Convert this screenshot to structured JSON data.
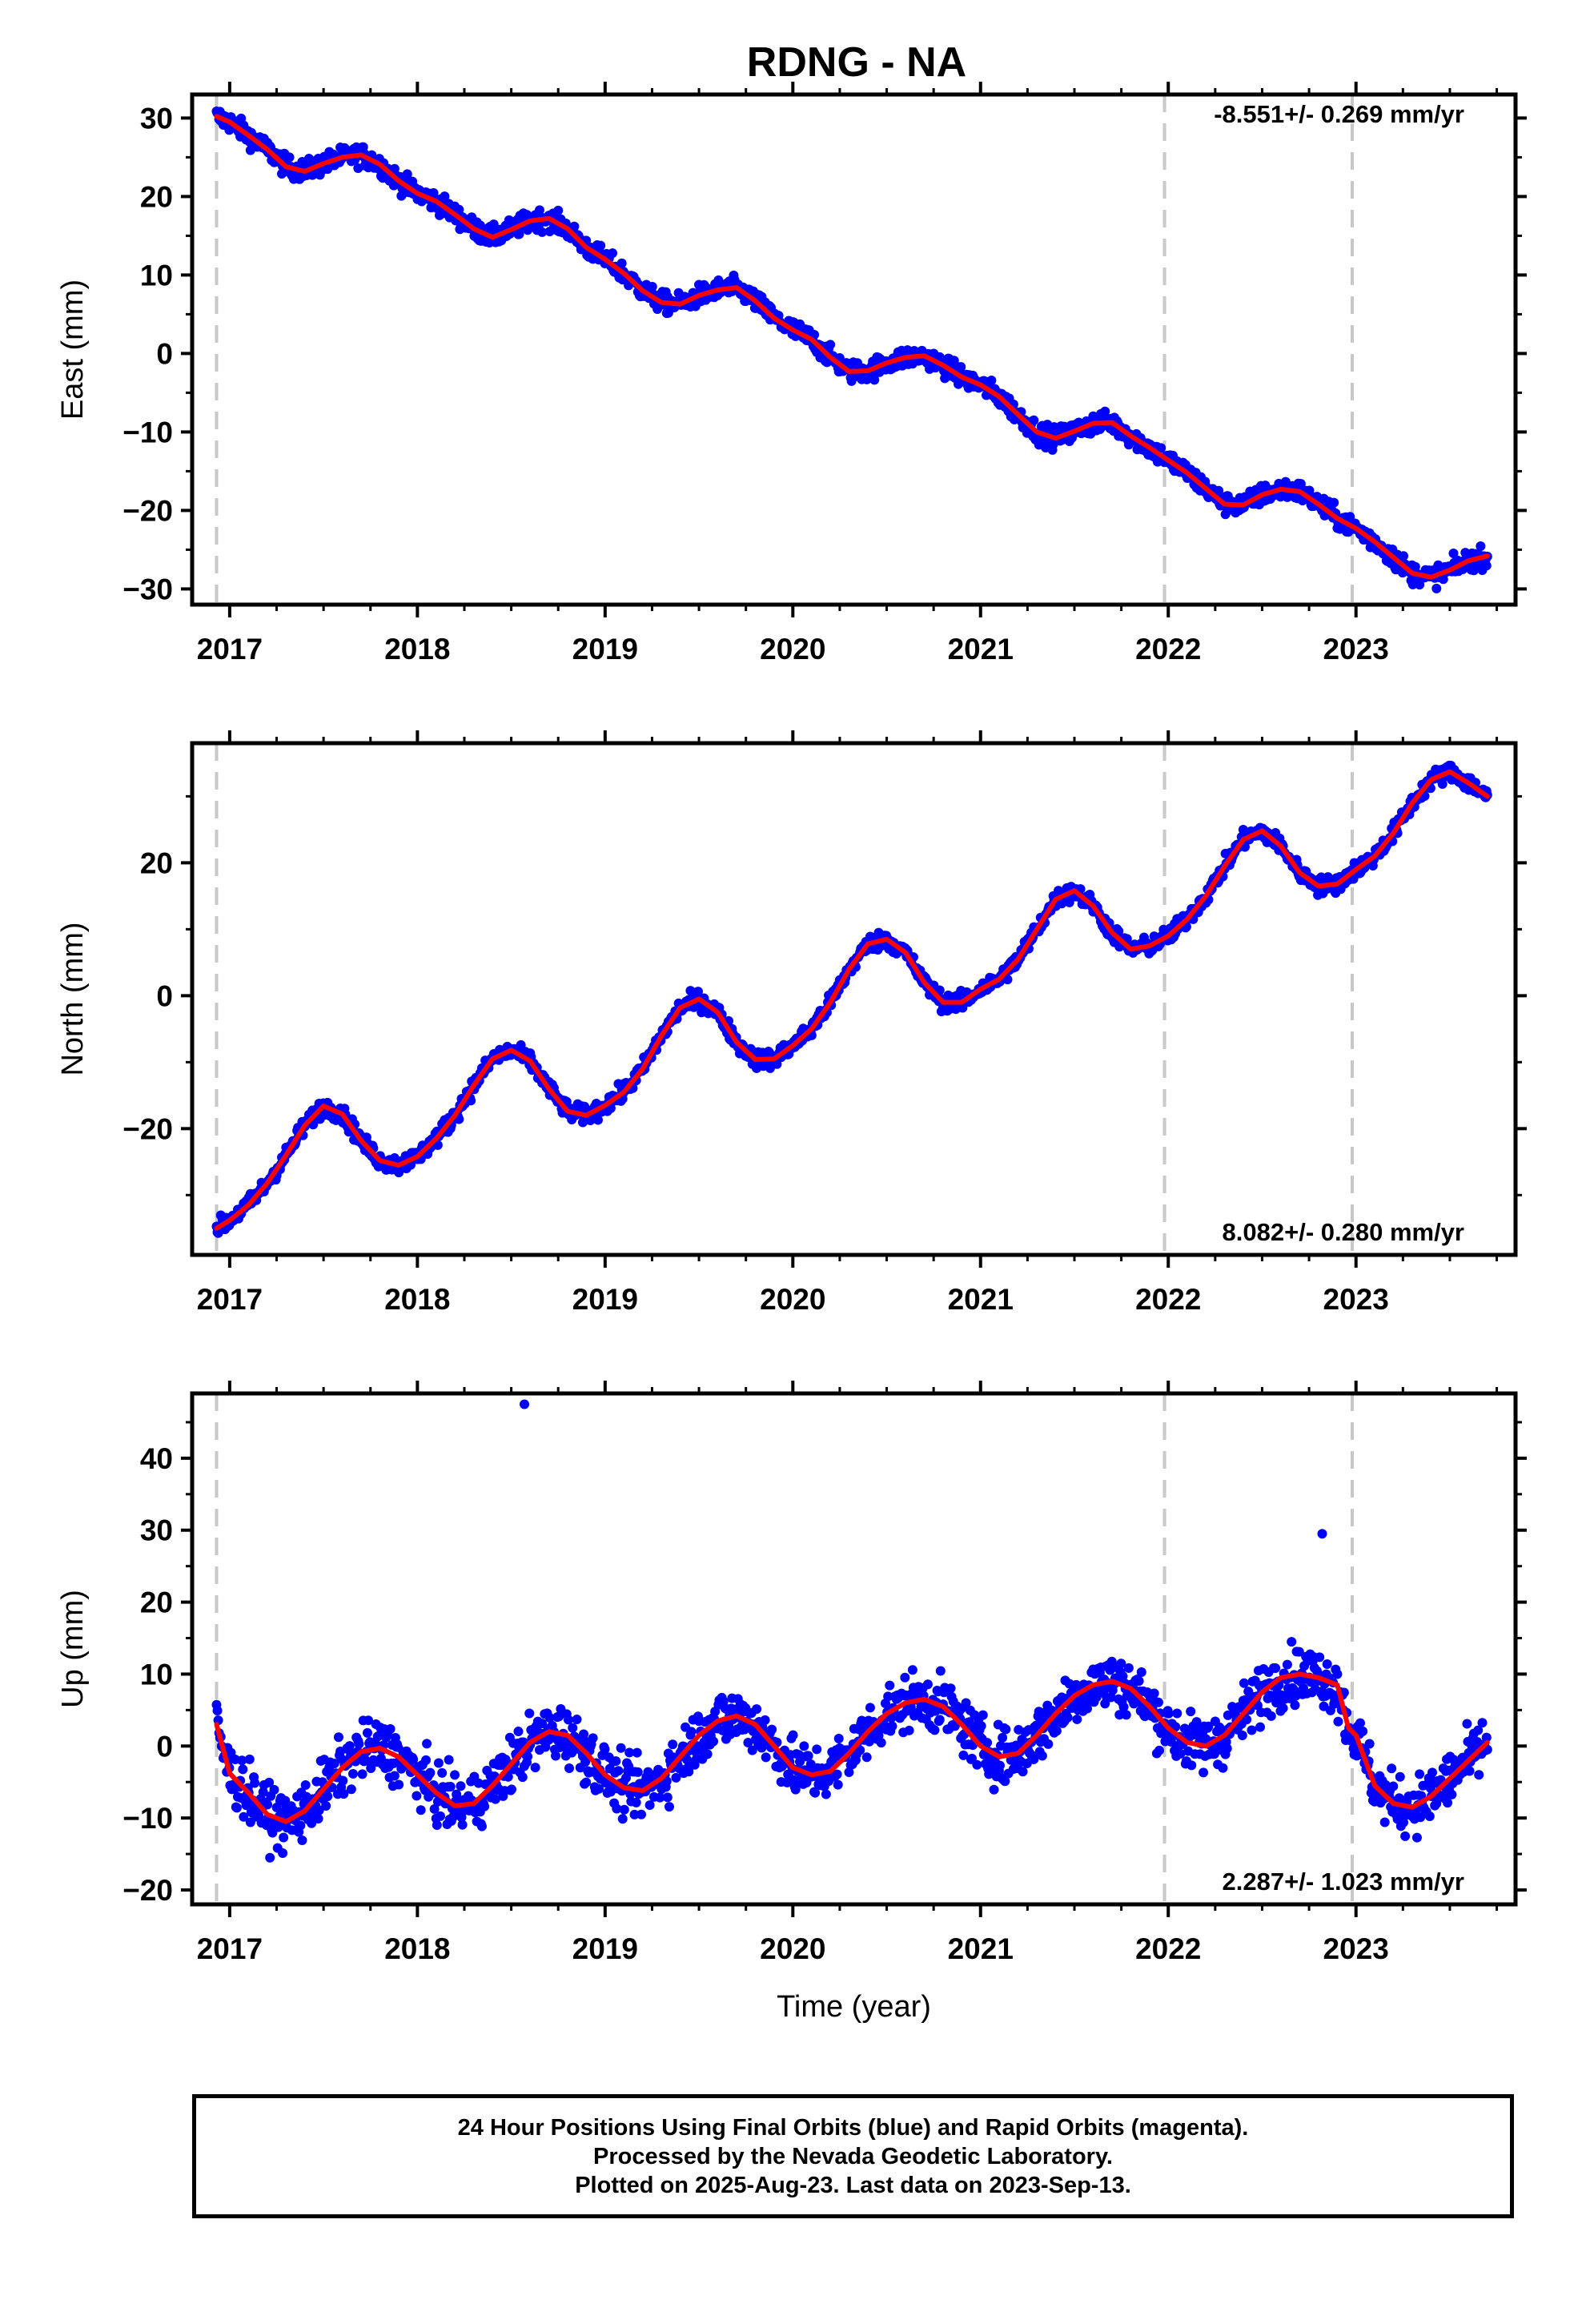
{
  "title": "RDNG - NA",
  "colors": {
    "data_points": "#0000ff",
    "model_line": "#ff0000",
    "gridline_dashed": "#c8c8c8",
    "axes": "#000000"
  },
  "chart_data": [
    {
      "type": "scatter",
      "title": "RDNG - NA",
      "xlabel": "",
      "ylabel": "East (mm)",
      "xlim": [
        2016.8,
        2023.85
      ],
      "ylim": [
        -32,
        33
      ],
      "yticks": [
        30,
        20,
        10,
        0,
        -10,
        -20,
        -30
      ],
      "xticks": [
        2017,
        2018,
        2019,
        2020,
        2021,
        2022,
        2023
      ],
      "xtick_labels": [
        "2017",
        "2018",
        "2019",
        "2020",
        "2021",
        "2022",
        "2023"
      ],
      "vertical_dashed_lines": [
        2016.93,
        2021.98,
        2022.98
      ],
      "rate_label": "-8.551+/- 0.269 mm/yr",
      "rate_label_position": "top-right",
      "series": [
        {
          "name": "",
          "kind": "points",
          "x": [
            2016.93,
            2017.0,
            2017.1,
            2017.2,
            2017.3,
            2017.4,
            2017.5,
            2017.6,
            2017.7,
            2017.8,
            2017.9,
            2018.0,
            2018.1,
            2018.2,
            2018.3,
            2018.4,
            2018.5,
            2018.6,
            2018.7,
            2018.8,
            2018.9,
            2019.0,
            2019.1,
            2019.2,
            2019.3,
            2019.4,
            2019.5,
            2019.6,
            2019.7,
            2019.8,
            2019.9,
            2020.0,
            2020.1,
            2020.2,
            2020.3,
            2020.4,
            2020.5,
            2020.6,
            2020.7,
            2020.8,
            2020.9,
            2021.0,
            2021.1,
            2021.2,
            2021.3,
            2021.4,
            2021.5,
            2021.6,
            2021.7,
            2021.8,
            2021.9,
            2022.0,
            2022.1,
            2022.2,
            2022.3,
            2022.4,
            2022.5,
            2022.6,
            2022.7,
            2022.8,
            2022.9,
            2023.0,
            2023.1,
            2023.2,
            2023.3,
            2023.4,
            2023.5,
            2023.6,
            2023.7
          ],
          "y": [
            30.2,
            29.5,
            27.8,
            26.0,
            23.8,
            23.2,
            24.2,
            25.0,
            25.3,
            24.1,
            22.0,
            20.4,
            19.4,
            17.7,
            15.9,
            14.8,
            15.8,
            16.9,
            17.2,
            15.9,
            13.5,
            12.0,
            10.2,
            8.0,
            6.5,
            6.3,
            7.4,
            8.1,
            8.4,
            6.7,
            4.5,
            3.0,
            1.8,
            -0.5,
            -2.3,
            -2.2,
            -1.2,
            -0.5,
            -0.3,
            -1.5,
            -3.0,
            -4.0,
            -5.5,
            -7.8,
            -10.0,
            -10.8,
            -9.9,
            -8.9,
            -8.8,
            -10.5,
            -12.0,
            -13.6,
            -15.2,
            -17.2,
            -19.2,
            -19.3,
            -18.0,
            -17.3,
            -17.6,
            -19.2,
            -21.0,
            -22.3,
            -24.0,
            -26.0,
            -28.0,
            -28.5,
            -27.6,
            -26.4,
            -25.8
          ]
        },
        {
          "name": "",
          "kind": "line",
          "x": [
            2016.93,
            2017.0,
            2017.1,
            2017.2,
            2017.3,
            2017.4,
            2017.5,
            2017.6,
            2017.7,
            2017.8,
            2017.9,
            2018.0,
            2018.1,
            2018.2,
            2018.3,
            2018.4,
            2018.5,
            2018.6,
            2018.7,
            2018.8,
            2018.9,
            2019.0,
            2019.1,
            2019.2,
            2019.3,
            2019.4,
            2019.5,
            2019.6,
            2019.7,
            2019.8,
            2019.9,
            2020.0,
            2020.1,
            2020.2,
            2020.3,
            2020.4,
            2020.5,
            2020.6,
            2020.7,
            2020.8,
            2020.9,
            2021.0,
            2021.1,
            2021.2,
            2021.3,
            2021.4,
            2021.5,
            2021.6,
            2021.7,
            2021.8,
            2021.9,
            2022.0,
            2022.1,
            2022.2,
            2022.3,
            2022.4,
            2022.5,
            2022.6,
            2022.7,
            2022.8,
            2022.9,
            2023.0,
            2023.1,
            2023.2,
            2023.3,
            2023.4,
            2023.5,
            2023.6,
            2023.7
          ],
          "y": [
            30.2,
            29.5,
            27.8,
            26.0,
            23.8,
            23.2,
            24.2,
            25.0,
            25.3,
            24.1,
            22.0,
            20.4,
            19.4,
            17.7,
            15.9,
            14.8,
            15.8,
            16.9,
            17.2,
            15.9,
            13.5,
            12.0,
            10.2,
            8.0,
            6.5,
            6.3,
            7.4,
            8.1,
            8.4,
            6.7,
            4.5,
            3.0,
            1.8,
            -0.5,
            -2.3,
            -2.2,
            -1.2,
            -0.5,
            -0.3,
            -1.5,
            -3.0,
            -4.0,
            -5.5,
            -7.8,
            -10.0,
            -10.8,
            -9.9,
            -8.9,
            -8.8,
            -10.5,
            -12.0,
            -13.6,
            -15.2,
            -17.2,
            -19.2,
            -19.3,
            -18.0,
            -17.3,
            -17.6,
            -19.2,
            -21.0,
            -22.3,
            -24.0,
            -26.0,
            -28.0,
            -28.5,
            -27.6,
            -26.4,
            -25.8
          ]
        }
      ]
    },
    {
      "type": "scatter",
      "title": "",
      "xlabel": "",
      "ylabel": "North (mm)",
      "xlim": [
        2016.8,
        2023.85
      ],
      "ylim": [
        -39,
        38
      ],
      "yticks": [
        20,
        0,
        -20
      ],
      "xticks": [
        2017,
        2018,
        2019,
        2020,
        2021,
        2022,
        2023
      ],
      "xtick_labels": [
        "2017",
        "2018",
        "2019",
        "2020",
        "2021",
        "2022",
        "2023"
      ],
      "vertical_dashed_lines": [
        2016.93,
        2021.98,
        2022.98
      ],
      "rate_label": "8.082+/- 0.280 mm/yr",
      "rate_label_position": "bottom-right",
      "series": [
        {
          "name": "",
          "kind": "points",
          "x": [
            2016.93,
            2017.0,
            2017.1,
            2017.2,
            2017.3,
            2017.4,
            2017.5,
            2017.6,
            2017.7,
            2017.8,
            2017.9,
            2018.0,
            2018.1,
            2018.2,
            2018.3,
            2018.4,
            2018.5,
            2018.6,
            2018.7,
            2018.8,
            2018.9,
            2019.0,
            2019.1,
            2019.2,
            2019.3,
            2019.4,
            2019.5,
            2019.6,
            2019.7,
            2019.8,
            2019.9,
            2020.0,
            2020.1,
            2020.2,
            2020.3,
            2020.4,
            2020.5,
            2020.6,
            2020.7,
            2020.8,
            2020.9,
            2021.0,
            2021.1,
            2021.2,
            2021.3,
            2021.4,
            2021.5,
            2021.6,
            2021.7,
            2021.8,
            2021.9,
            2022.0,
            2022.1,
            2022.2,
            2022.3,
            2022.4,
            2022.5,
            2022.6,
            2022.7,
            2022.8,
            2022.9,
            2023.0,
            2023.1,
            2023.2,
            2023.3,
            2023.4,
            2023.5,
            2023.6,
            2023.7
          ],
          "y": [
            -35.0,
            -33.8,
            -31.5,
            -28.2,
            -24.0,
            -19.5,
            -16.6,
            -17.8,
            -21.8,
            -24.8,
            -25.5,
            -24.2,
            -21.5,
            -18.0,
            -13.5,
            -9.5,
            -8.2,
            -9.8,
            -14.0,
            -17.4,
            -18.0,
            -16.5,
            -14.5,
            -11.0,
            -6.0,
            -1.8,
            -0.5,
            -2.5,
            -7.0,
            -9.6,
            -9.5,
            -7.5,
            -5.0,
            -1.0,
            4.0,
            7.8,
            8.5,
            6.5,
            2.0,
            -1.0,
            -1.0,
            1.0,
            2.5,
            5.5,
            10.0,
            14.5,
            15.8,
            13.5,
            9.5,
            7.0,
            7.5,
            9.0,
            11.5,
            15.0,
            19.5,
            23.5,
            24.8,
            22.5,
            18.5,
            16.5,
            16.8,
            19.0,
            21.0,
            24.5,
            29.0,
            32.5,
            33.7,
            32.0,
            30.0
          ]
        },
        {
          "name": "",
          "kind": "line",
          "x": [
            2016.93,
            2017.0,
            2017.1,
            2017.2,
            2017.3,
            2017.4,
            2017.5,
            2017.6,
            2017.7,
            2017.8,
            2017.9,
            2018.0,
            2018.1,
            2018.2,
            2018.3,
            2018.4,
            2018.5,
            2018.6,
            2018.7,
            2018.8,
            2018.9,
            2019.0,
            2019.1,
            2019.2,
            2019.3,
            2019.4,
            2019.5,
            2019.6,
            2019.7,
            2019.8,
            2019.9,
            2020.0,
            2020.1,
            2020.2,
            2020.3,
            2020.4,
            2020.5,
            2020.6,
            2020.7,
            2020.8,
            2020.9,
            2021.0,
            2021.1,
            2021.2,
            2021.3,
            2021.4,
            2021.5,
            2021.6,
            2021.7,
            2021.8,
            2021.9,
            2022.0,
            2022.1,
            2022.2,
            2022.3,
            2022.4,
            2022.5,
            2022.6,
            2022.7,
            2022.8,
            2022.9,
            2023.0,
            2023.1,
            2023.2,
            2023.3,
            2023.4,
            2023.5,
            2023.6,
            2023.7
          ],
          "y": [
            -35.0,
            -33.8,
            -31.5,
            -28.2,
            -24.0,
            -19.5,
            -16.6,
            -17.8,
            -21.8,
            -24.8,
            -25.5,
            -24.2,
            -21.5,
            -18.0,
            -13.5,
            -9.5,
            -8.2,
            -9.8,
            -14.0,
            -17.4,
            -18.0,
            -16.5,
            -14.5,
            -11.0,
            -6.0,
            -1.8,
            -0.5,
            -2.5,
            -7.0,
            -9.6,
            -9.5,
            -7.5,
            -5.0,
            -1.0,
            4.0,
            7.8,
            8.5,
            6.5,
            2.0,
            -1.0,
            -1.0,
            1.0,
            2.5,
            5.5,
            10.0,
            14.5,
            15.8,
            13.5,
            9.5,
            7.0,
            7.5,
            9.0,
            11.5,
            15.0,
            19.5,
            23.5,
            24.8,
            22.5,
            18.5,
            16.5,
            16.8,
            19.0,
            21.0,
            24.5,
            29.0,
            32.5,
            33.7,
            32.0,
            30.0
          ]
        }
      ]
    },
    {
      "type": "scatter",
      "title": "",
      "xlabel": "Time (year)",
      "ylabel": "Up (mm)",
      "xlim": [
        2016.8,
        2023.85
      ],
      "ylim": [
        -22,
        49
      ],
      "yticks": [
        40,
        30,
        20,
        10,
        0,
        -10,
        -20
      ],
      "xticks": [
        2017,
        2018,
        2019,
        2020,
        2021,
        2022,
        2023
      ],
      "xtick_labels": [
        "2017",
        "2018",
        "2019",
        "2020",
        "2021",
        "2022",
        "2023"
      ],
      "vertical_dashed_lines": [
        2016.93,
        2021.98,
        2022.98
      ],
      "rate_label": "2.287+/- 1.023 mm/yr",
      "rate_label_position": "bottom-right",
      "outliers": [
        {
          "x": 2018.57,
          "y": 47.5
        },
        {
          "x": 2022.82,
          "y": 29.5
        }
      ],
      "series": [
        {
          "name": "",
          "kind": "points",
          "x": [
            2016.93,
            2017.0,
            2017.1,
            2017.2,
            2017.3,
            2017.4,
            2017.5,
            2017.6,
            2017.7,
            2017.8,
            2017.9,
            2018.0,
            2018.1,
            2018.2,
            2018.3,
            2018.4,
            2018.5,
            2018.6,
            2018.7,
            2018.8,
            2018.9,
            2019.0,
            2019.1,
            2019.2,
            2019.3,
            2019.4,
            2019.5,
            2019.6,
            2019.7,
            2019.8,
            2019.9,
            2020.0,
            2020.1,
            2020.2,
            2020.3,
            2020.4,
            2020.5,
            2020.6,
            2020.7,
            2020.8,
            2020.9,
            2021.0,
            2021.1,
            2021.2,
            2021.3,
            2021.4,
            2021.5,
            2021.6,
            2021.7,
            2021.8,
            2021.9,
            2022.0,
            2022.1,
            2022.2,
            2022.3,
            2022.4,
            2022.5,
            2022.6,
            2022.7,
            2022.8,
            2022.9,
            2022.96,
            2023.0,
            2023.1,
            2023.2,
            2023.3,
            2023.4,
            2023.5,
            2023.6,
            2023.7
          ],
          "y": [
            3.0,
            -3.8,
            -6.5,
            -9.5,
            -10.5,
            -9.0,
            -6.0,
            -3.0,
            -0.8,
            -0.3,
            -1.5,
            -4.0,
            -6.5,
            -8.3,
            -8.0,
            -5.5,
            -2.5,
            0.5,
            2.0,
            1.5,
            -1.0,
            -4.0,
            -5.8,
            -6.2,
            -4.5,
            -1.5,
            1.5,
            3.5,
            4.2,
            3.0,
            0.0,
            -3.0,
            -4.0,
            -3.5,
            -1.0,
            2.0,
            4.5,
            6.0,
            6.5,
            5.5,
            3.0,
            0.0,
            -1.5,
            -1.0,
            1.5,
            4.5,
            7.0,
            8.5,
            9.0,
            8.0,
            5.5,
            2.5,
            0.5,
            0.0,
            1.5,
            4.5,
            7.5,
            9.5,
            10.0,
            9.5,
            8.5,
            2.5,
            1.5,
            -5.5,
            -8.0,
            -8.5,
            -7.0,
            -4.5,
            -2.0,
            0.5
          ]
        },
        {
          "name": "",
          "kind": "line",
          "x": [
            2016.93,
            2017.0,
            2017.1,
            2017.2,
            2017.3,
            2017.4,
            2017.5,
            2017.6,
            2017.7,
            2017.8,
            2017.9,
            2018.0,
            2018.1,
            2018.2,
            2018.3,
            2018.4,
            2018.5,
            2018.6,
            2018.7,
            2018.8,
            2018.9,
            2019.0,
            2019.1,
            2019.2,
            2019.3,
            2019.4,
            2019.5,
            2019.6,
            2019.7,
            2019.8,
            2019.9,
            2020.0,
            2020.1,
            2020.2,
            2020.3,
            2020.4,
            2020.5,
            2020.6,
            2020.7,
            2020.8,
            2020.9,
            2021.0,
            2021.1,
            2021.2,
            2021.3,
            2021.4,
            2021.5,
            2021.6,
            2021.7,
            2021.8,
            2021.9,
            2022.0,
            2022.1,
            2022.2,
            2022.3,
            2022.4,
            2022.5,
            2022.6,
            2022.7,
            2022.8,
            2022.9,
            2022.96,
            2023.0,
            2023.1,
            2023.2,
            2023.3,
            2023.4,
            2023.5,
            2023.6,
            2023.7
          ],
          "y": [
            3.0,
            -3.8,
            -6.5,
            -9.5,
            -10.5,
            -9.0,
            -6.0,
            -3.0,
            -0.8,
            -0.3,
            -1.5,
            -4.0,
            -6.5,
            -8.3,
            -8.0,
            -5.5,
            -2.5,
            0.5,
            2.0,
            1.5,
            -1.0,
            -4.0,
            -5.8,
            -6.2,
            -4.5,
            -1.5,
            1.5,
            3.5,
            4.2,
            3.0,
            0.0,
            -3.0,
            -4.0,
            -3.5,
            -1.0,
            2.0,
            4.5,
            6.0,
            6.5,
            5.5,
            3.0,
            0.0,
            -1.5,
            -1.0,
            1.5,
            4.5,
            7.0,
            8.5,
            9.0,
            8.0,
            5.5,
            2.5,
            0.5,
            0.0,
            1.5,
            4.5,
            7.5,
            9.5,
            10.0,
            9.5,
            8.5,
            2.5,
            1.5,
            -5.5,
            -8.0,
            -8.5,
            -7.0,
            -4.5,
            -2.0,
            0.5
          ]
        }
      ]
    }
  ],
  "footer": {
    "line1": "24 Hour Positions Using Final Orbits (blue) and Rapid Orbits (magenta).",
    "line2": "Processed by the Nevada Geodetic Laboratory.",
    "line3": "Plotted on 2025-Aug-23. Last data on 2023-Sep-13."
  }
}
